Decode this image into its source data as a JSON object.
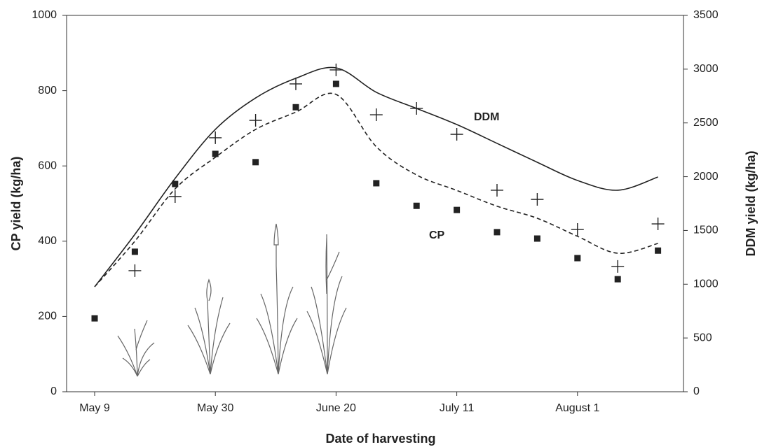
{
  "chart_data": {
    "type": "scatter",
    "x_label": "Date of harvesting",
    "y_label": "CP yield (kg/ha)",
    "y2_label": "DDM yield (kg/ha)",
    "categories": [
      "May 9",
      null,
      null,
      "May 30",
      null,
      null,
      "June 20",
      null,
      null,
      "July 11",
      null,
      null,
      "August 1",
      null,
      null
    ],
    "series": [
      {
        "name": "CP",
        "color": "#222222",
        "marker": "square",
        "dash": true,
        "values": [
          195,
          372,
          552,
          632,
          610,
          756,
          818,
          554,
          494,
          483,
          424,
          407,
          355,
          299,
          375
        ],
        "fit": [
          279,
          400,
          539,
          623,
          697,
          743,
          790,
          651,
          576,
          535,
          493,
          461,
          413,
          368,
          394
        ]
      },
      {
        "name": "DDM",
        "color": "#222222",
        "marker": "plus",
        "dash": false,
        "axis": "y2",
        "values": [
          null,
          1126,
          1815,
          2362,
          2524,
          2863,
          2993,
          2576,
          2635,
          2394,
          1874,
          1789,
          1509,
          1165,
          1561
        ],
        "fit": [
          976,
          1464,
          1984,
          2440,
          2732,
          2915,
          3012,
          2785,
          2635,
          2485,
          2310,
          2134,
          1965,
          1874,
          1997
        ]
      }
    ],
    "ylim": [
      0,
      1000
    ],
    "yticks": [
      0,
      200,
      400,
      600,
      800,
      1000
    ],
    "y2lim": [
      0,
      3500
    ],
    "y2ticks": [
      0,
      500,
      1000,
      1500,
      2000,
      2500,
      3000,
      3500
    ]
  }
}
